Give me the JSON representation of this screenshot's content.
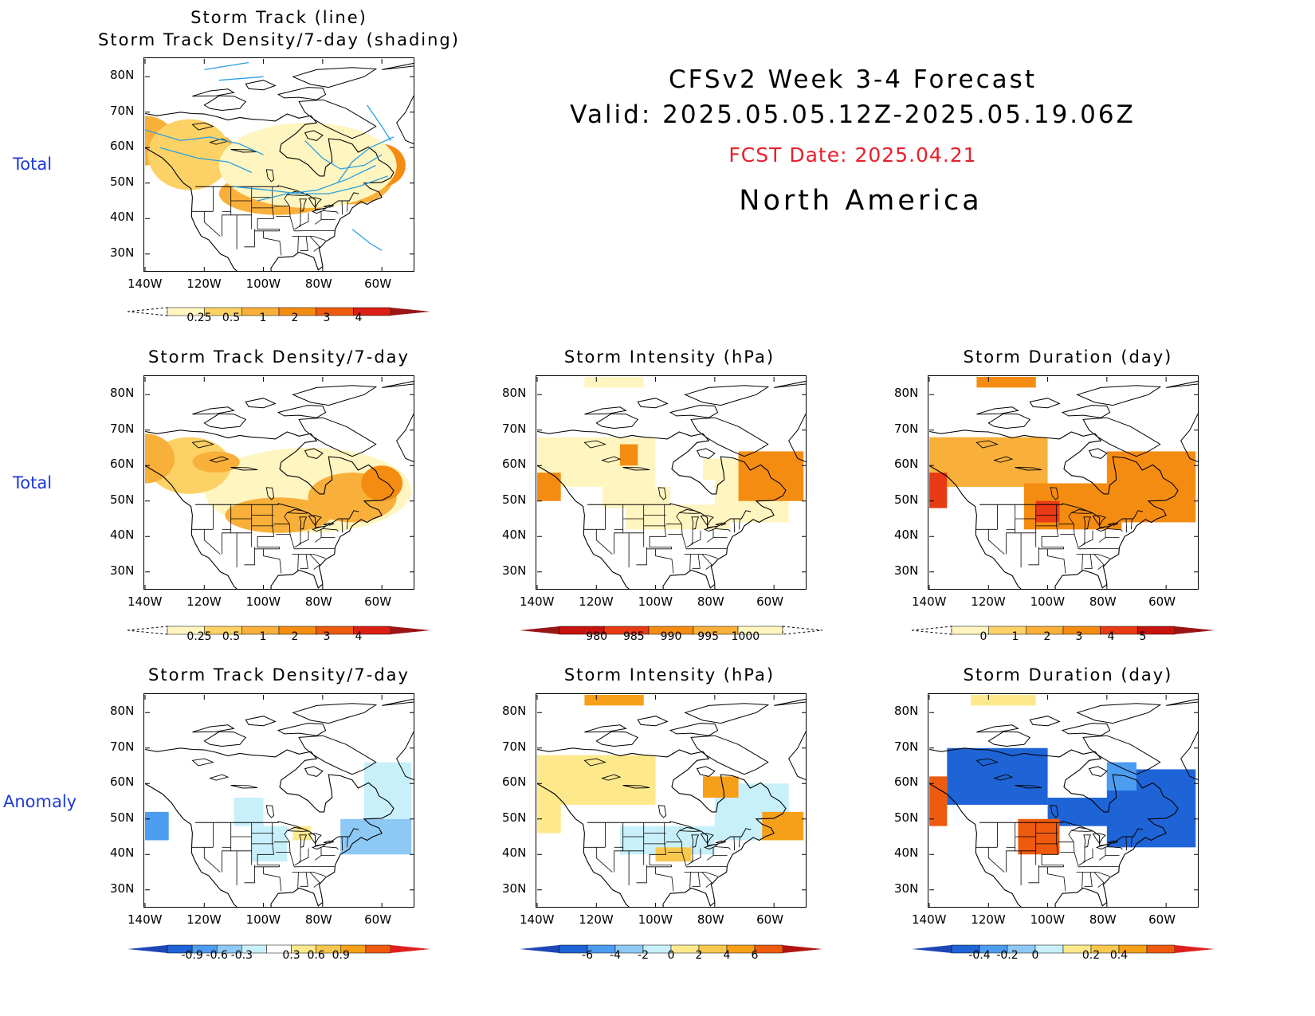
{
  "header": {
    "title": "CFSv2 Week 3-4 Forecast",
    "valid": "Valid: 2025.05.05.12Z-2025.05.19.06Z",
    "fcst_date": "FCST Date: 2025.04.21",
    "region": "North America"
  },
  "row_labels": [
    "Total",
    "Total",
    "Anomaly"
  ],
  "colors": {
    "row_label": "#1e3ad8",
    "fcst_date": "#e8202a",
    "track_line": "#2aa0e0"
  },
  "chart_data": [
    {
      "id": "p_track_total",
      "type": "heatmap",
      "title_lines": [
        "Storm Track (line)",
        "Storm Track Density/7-day (shading)"
      ],
      "lat_ticks": [
        "80N",
        "70N",
        "60N",
        "50N",
        "40N",
        "30N"
      ],
      "lon_ticks": [
        "140W",
        "120W",
        "100W",
        "80W",
        "60W"
      ],
      "colorbar": {
        "labels": [
          "0.25",
          "0.5",
          "1",
          "2",
          "3",
          "4"
        ],
        "colors": [
          "#fff5c0",
          "#fcd266",
          "#f8b03a",
          "#f58c12",
          "#ee5a0e",
          "#dc1f14"
        ],
        "low_end": "dashed",
        "high_end": "#9a1616"
      },
      "shading": [
        {
          "lon": -140,
          "lat": 62,
          "rx": 10,
          "ry": 7,
          "level": 2
        },
        {
          "lon": -118,
          "lat": 60,
          "rx": 8,
          "ry": 4,
          "level": 2
        },
        {
          "lon": -95,
          "lat": 47,
          "rx": 20,
          "ry": 6,
          "level": 2
        },
        {
          "lon": -70,
          "lat": 52,
          "rx": 14,
          "ry": 8,
          "level": 2
        },
        {
          "lon": -60,
          "lat": 55,
          "rx": 8,
          "ry": 6,
          "level": 3
        },
        {
          "lon": -57,
          "lat": 56,
          "rx": 2,
          "ry": 2,
          "level": 4
        },
        {
          "lon": -125,
          "lat": 58,
          "rx": 14,
          "ry": 10,
          "level": 1
        },
        {
          "lon": -85,
          "lat": 55,
          "rx": 30,
          "ry": 12,
          "level": 0
        }
      ],
      "tracks": [
        [
          [
            -140,
            65
          ],
          [
            -128,
            62
          ],
          [
            -118,
            63
          ],
          [
            -108,
            61
          ],
          [
            -100,
            58
          ]
        ],
        [
          [
            -135,
            60
          ],
          [
            -122,
            57
          ],
          [
            -112,
            56
          ],
          [
            -104,
            53
          ]
        ],
        [
          [
            -110,
            49
          ],
          [
            -98,
            48
          ],
          [
            -88,
            47
          ],
          [
            -78,
            47
          ],
          [
            -68,
            49
          ],
          [
            -58,
            52
          ]
        ],
        [
          [
            -102,
            45
          ],
          [
            -92,
            47
          ],
          [
            -82,
            48
          ],
          [
            -72,
            51
          ],
          [
            -62,
            55
          ]
        ],
        [
          [
            -86,
            62
          ],
          [
            -80,
            57
          ],
          [
            -74,
            54
          ],
          [
            -66,
            55
          ],
          [
            -60,
            58
          ]
        ],
        [
          [
            -75,
            50
          ],
          [
            -70,
            56
          ],
          [
            -64,
            60
          ],
          [
            -56,
            63
          ]
        ],
        [
          [
            -120,
            82
          ],
          [
            -105,
            84
          ]
        ],
        [
          [
            -115,
            79
          ],
          [
            -100,
            80
          ]
        ],
        [
          [
            -65,
            72
          ],
          [
            -60,
            66
          ],
          [
            -57,
            62
          ]
        ],
        [
          [
            -70,
            37
          ],
          [
            -64,
            33
          ],
          [
            -60,
            31
          ]
        ]
      ]
    },
    {
      "id": "p_density_total",
      "type": "heatmap",
      "title": "Storm Track Density/7-day",
      "lat_ticks": [
        "80N",
        "70N",
        "60N",
        "50N",
        "40N",
        "30N"
      ],
      "lon_ticks": [
        "140W",
        "120W",
        "100W",
        "80W",
        "60W"
      ],
      "colorbar": {
        "labels": [
          "0.25",
          "0.5",
          "1",
          "2",
          "3",
          "4"
        ],
        "colors": [
          "#fff5c0",
          "#fcd266",
          "#f8b03a",
          "#f58c12",
          "#ee5a0e",
          "#dc1f14"
        ],
        "low_end": "dashed",
        "high_end": "#9a1616"
      },
      "shading": [
        {
          "lon": -85,
          "lat": 53,
          "rx": 35,
          "ry": 12,
          "level": 0
        },
        {
          "lon": -125,
          "lat": 60,
          "rx": 14,
          "ry": 8,
          "level": 1
        },
        {
          "lon": -140,
          "lat": 62,
          "rx": 10,
          "ry": 7,
          "level": 2
        },
        {
          "lon": -116,
          "lat": 61,
          "rx": 8,
          "ry": 3,
          "level": 2
        },
        {
          "lon": -95,
          "lat": 46,
          "rx": 18,
          "ry": 5,
          "level": 2
        },
        {
          "lon": -70,
          "lat": 51,
          "rx": 15,
          "ry": 7,
          "level": 2
        },
        {
          "lon": -60,
          "lat": 55,
          "rx": 7,
          "ry": 5,
          "level": 3
        }
      ]
    },
    {
      "id": "p_intensity_total",
      "type": "heatmap",
      "title": "Storm Intensity (hPa)",
      "lat_ticks": [
        "80N",
        "70N",
        "60N",
        "50N",
        "40N",
        "30N"
      ],
      "lon_ticks": [
        "140W",
        "120W",
        "100W",
        "80W",
        "60W"
      ],
      "colorbar": {
        "labels": [
          "980",
          "985",
          "990",
          "995",
          "1000"
        ],
        "colors": [
          "#c8140e",
          "#e83a14",
          "#f58c12",
          "#f8b03a",
          "#fff5c0"
        ],
        "low_end": "#9a1616",
        "high_end": "dashed"
      },
      "cells": [
        {
          "lon": [
            -124,
            -104
          ],
          "lat": [
            82,
            85
          ],
          "level": 4
        },
        {
          "lon": [
            -140,
            -100
          ],
          "lat": [
            54,
            68
          ],
          "level": 4
        },
        {
          "lon": [
            -118,
            -95
          ],
          "lat": [
            48,
            54
          ],
          "level": 4
        },
        {
          "lon": [
            -110,
            -75
          ],
          "lat": [
            42,
            49
          ],
          "level": 4
        },
        {
          "lon": [
            -80,
            -55
          ],
          "lat": [
            44,
            60
          ],
          "level": 4
        },
        {
          "lon": [
            -84,
            -72
          ],
          "lat": [
            56,
            62
          ],
          "level": 4
        },
        {
          "lon": [
            -140,
            -132
          ],
          "lat": [
            50,
            58
          ],
          "level": 2
        },
        {
          "lon": [
            -112,
            -106
          ],
          "lat": [
            60,
            66
          ],
          "level": 2
        },
        {
          "lon": [
            -72,
            -50
          ],
          "lat": [
            50,
            64
          ],
          "level": 2
        }
      ]
    },
    {
      "id": "p_duration_total",
      "type": "heatmap",
      "title": "Storm Duration (day)",
      "lat_ticks": [
        "80N",
        "70N",
        "60N",
        "50N",
        "40N",
        "30N"
      ],
      "lon_ticks": [
        "140W",
        "120W",
        "100W",
        "80W",
        "60W"
      ],
      "colorbar": {
        "labels": [
          "0",
          "1",
          "2",
          "3",
          "4",
          "5"
        ],
        "colors": [
          "#fff5c0",
          "#fcd266",
          "#f8b03a",
          "#f58c12",
          "#e83a14",
          "#c8140e"
        ],
        "low_end": "dashed",
        "high_end": "#9a1616"
      },
      "cells": [
        {
          "lon": [
            -124,
            -104
          ],
          "lat": [
            82,
            85
          ],
          "level": 3
        },
        {
          "lon": [
            -140,
            -100
          ],
          "lat": [
            54,
            68
          ],
          "level": 2
        },
        {
          "lon": [
            -108,
            -75
          ],
          "lat": [
            42,
            55
          ],
          "level": 3
        },
        {
          "lon": [
            -80,
            -50
          ],
          "lat": [
            44,
            64
          ],
          "level": 3
        },
        {
          "lon": [
            -140,
            -134
          ],
          "lat": [
            48,
            58
          ],
          "level": 4
        },
        {
          "lon": [
            -104,
            -96
          ],
          "lat": [
            44,
            50
          ],
          "level": 4
        }
      ]
    },
    {
      "id": "p_density_anom",
      "type": "heatmap",
      "title": "Storm Track Density/7-day",
      "lat_ticks": [
        "80N",
        "70N",
        "60N",
        "50N",
        "40N",
        "30N"
      ],
      "lon_ticks": [
        "140W",
        "120W",
        "100W",
        "80W",
        "60W"
      ],
      "colorbar": {
        "labels": [
          "-0.9",
          "-0.6",
          "-0.3",
          "0.3",
          "0.6",
          "0.9"
        ],
        "colors": [
          "#1e64d6",
          "#4c9cf0",
          "#8ec9f6",
          "#c8f0fa",
          "#ffffff",
          "#fde98c",
          "#f8c84e",
          "#f5a018",
          "#ee5a0e"
        ],
        "low_end": "#1e46b4",
        "high_end": "#e0201e"
      },
      "cells": [
        {
          "lon": [
            -140,
            -132
          ],
          "lat": [
            44,
            52
          ],
          "level": 1
        },
        {
          "lon": [
            -110,
            -100
          ],
          "lat": [
            48,
            56
          ],
          "level": 3
        },
        {
          "lon": [
            -104,
            -92
          ],
          "lat": [
            38,
            48
          ],
          "level": 3
        },
        {
          "lon": [
            -74,
            -50
          ],
          "lat": [
            40,
            50
          ],
          "level": 2
        },
        {
          "lon": [
            -66,
            -50
          ],
          "lat": [
            50,
            66
          ],
          "level": 3
        },
        {
          "lon": [
            -90,
            -84
          ],
          "lat": [
            44,
            48
          ],
          "level": 5
        }
      ]
    },
    {
      "id": "p_intensity_anom",
      "type": "heatmap",
      "title": "Storm Intensity (hPa)",
      "lat_ticks": [
        "80N",
        "70N",
        "60N",
        "50N",
        "40N",
        "30N"
      ],
      "lon_ticks": [
        "140W",
        "120W",
        "100W",
        "80W",
        "60W"
      ],
      "colorbar": {
        "labels": [
          "-6",
          "-4",
          "-2",
          "0",
          "2",
          "4",
          "6"
        ],
        "colors": [
          "#1e64d6",
          "#4c9cf0",
          "#8ec9f6",
          "#c8f0fa",
          "#fde98c",
          "#f8c84e",
          "#f5a018",
          "#ee5a0e"
        ],
        "low_end": "#1e46b4",
        "high_end": "#b0140e"
      },
      "cells": [
        {
          "lon": [
            -124,
            -104
          ],
          "lat": [
            82,
            85
          ],
          "level": 6
        },
        {
          "lon": [
            -140,
            -100
          ],
          "lat": [
            54,
            68
          ],
          "level": 4
        },
        {
          "lon": [
            -140,
            -132
          ],
          "lat": [
            46,
            60
          ],
          "level": 4
        },
        {
          "lon": [
            -112,
            -80
          ],
          "lat": [
            40,
            48
          ],
          "level": 3
        },
        {
          "lon": [
            -80,
            -55
          ],
          "lat": [
            44,
            60
          ],
          "level": 3
        },
        {
          "lon": [
            -84,
            -72
          ],
          "lat": [
            56,
            62
          ],
          "level": 6
        },
        {
          "lon": [
            -64,
            -50
          ],
          "lat": [
            44,
            52
          ],
          "level": 6
        },
        {
          "lon": [
            -100,
            -88
          ],
          "lat": [
            38,
            42
          ],
          "level": 5
        }
      ]
    },
    {
      "id": "p_duration_anom",
      "type": "heatmap",
      "title": "Storm Duration (day)",
      "lat_ticks": [
        "80N",
        "70N",
        "60N",
        "50N",
        "40N",
        "30N"
      ],
      "lon_ticks": [
        "140W",
        "120W",
        "100W",
        "80W",
        "60W"
      ],
      "colorbar": {
        "labels": [
          "-0.4",
          "-0.2",
          "0",
          "0.2",
          "0.4"
        ],
        "colors": [
          "#1e64d6",
          "#4c9cf0",
          "#8ec9f6",
          "#c8f0fa",
          "#fde98c",
          "#f8c84e",
          "#f5a018",
          "#ee5a0e"
        ],
        "low_end": "#1e46b4",
        "high_end": "#e0201e"
      },
      "cells": [
        {
          "lon": [
            -126,
            -104
          ],
          "lat": [
            82,
            85
          ],
          "level": 4
        },
        {
          "lon": [
            -134,
            -100
          ],
          "lat": [
            54,
            70
          ],
          "level": 0
        },
        {
          "lon": [
            -100,
            -75
          ],
          "lat": [
            48,
            56
          ],
          "level": 0
        },
        {
          "lon": [
            -80,
            -50
          ],
          "lat": [
            42,
            64
          ],
          "level": 0
        },
        {
          "lon": [
            -140,
            -134
          ],
          "lat": [
            48,
            62
          ],
          "level": 7
        },
        {
          "lon": [
            -110,
            -96
          ],
          "lat": [
            40,
            50
          ],
          "level": 7
        },
        {
          "lon": [
            -80,
            -70
          ],
          "lat": [
            58,
            66
          ],
          "level": 1
        }
      ]
    }
  ]
}
